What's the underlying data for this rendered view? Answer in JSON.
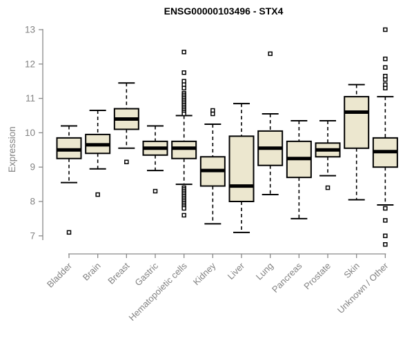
{
  "colors": {
    "box_fill": "#ece7cf",
    "box_border": "#000000",
    "median": "#000000",
    "whisker": "#000000",
    "axis": "#888888",
    "axis_text": "#828282",
    "title_text": "#000000",
    "outlier_fill": "#ffffff"
  },
  "chart_data": {
    "type": "boxplot",
    "title": "ENSG00000103496 - STX4",
    "ylabel": "Expression",
    "xlabel": "",
    "ylim": [
      7,
      13
    ],
    "yticks": [
      7,
      8,
      9,
      10,
      11,
      12,
      13
    ],
    "grid": false,
    "legend": false,
    "categories": [
      "Bladder",
      "Brain",
      "Breast",
      "Gastric",
      "Hematopoietic cells",
      "Kidney",
      "Liver",
      "Lung",
      "Pancreas",
      "Prostate",
      "Skin",
      "Unknown / Other"
    ],
    "boxes": [
      {
        "category": "Bladder",
        "low": 8.55,
        "q1": 9.25,
        "median": 9.5,
        "q3": 9.85,
        "high": 10.2,
        "outliers": [
          7.1
        ]
      },
      {
        "category": "Brain",
        "low": 8.95,
        "q1": 9.4,
        "median": 9.65,
        "q3": 9.95,
        "high": 10.65,
        "outliers": [
          8.2
        ]
      },
      {
        "category": "Breast",
        "low": 9.55,
        "q1": 10.1,
        "median": 10.4,
        "q3": 10.7,
        "high": 11.45,
        "outliers": [
          9.15
        ]
      },
      {
        "category": "Gastric",
        "low": 8.9,
        "q1": 9.35,
        "median": 9.55,
        "q3": 9.75,
        "high": 10.2,
        "outliers": [
          8.3
        ]
      },
      {
        "category": "Hematopoietic cells",
        "low": 8.5,
        "q1": 9.25,
        "median": 9.55,
        "q3": 9.75,
        "high": 10.5,
        "outliers": [
          12.35,
          11.75,
          11.5,
          11.4,
          11.3,
          11.15,
          11.1,
          11.05,
          11.0,
          10.95,
          10.9,
          10.85,
          10.8,
          10.75,
          10.7,
          10.65,
          10.6,
          10.55,
          8.4,
          8.35,
          8.3,
          8.25,
          8.2,
          8.15,
          8.1,
          8.05,
          8.0,
          7.95,
          7.9,
          7.85,
          7.8,
          7.6
        ]
      },
      {
        "category": "Kidney",
        "low": 7.35,
        "q1": 8.45,
        "median": 8.9,
        "q3": 9.3,
        "high": 10.25,
        "outliers": [
          10.65,
          10.55
        ]
      },
      {
        "category": "Liver",
        "low": 7.1,
        "q1": 8.0,
        "median": 8.45,
        "q3": 9.9,
        "high": 10.85,
        "outliers": []
      },
      {
        "category": "Lung",
        "low": 8.2,
        "q1": 9.05,
        "median": 9.55,
        "q3": 10.05,
        "high": 10.55,
        "outliers": [
          12.3
        ]
      },
      {
        "category": "Pancreas",
        "low": 7.5,
        "q1": 8.7,
        "median": 9.25,
        "q3": 9.75,
        "high": 10.35,
        "outliers": []
      },
      {
        "category": "Prostate",
        "low": 8.75,
        "q1": 9.3,
        "median": 9.5,
        "q3": 9.7,
        "high": 10.35,
        "outliers": [
          8.4
        ]
      },
      {
        "category": "Skin",
        "low": 8.05,
        "q1": 9.55,
        "median": 10.6,
        "q3": 11.05,
        "high": 11.4,
        "outliers": []
      },
      {
        "category": "Unknown / Other",
        "low": 7.9,
        "q1": 9.0,
        "median": 9.45,
        "q3": 9.85,
        "high": 11.05,
        "outliers": [
          13.0,
          12.15,
          11.9,
          11.65,
          11.55,
          11.4,
          11.3,
          7.8,
          7.45,
          7.0,
          6.75
        ]
      }
    ]
  }
}
